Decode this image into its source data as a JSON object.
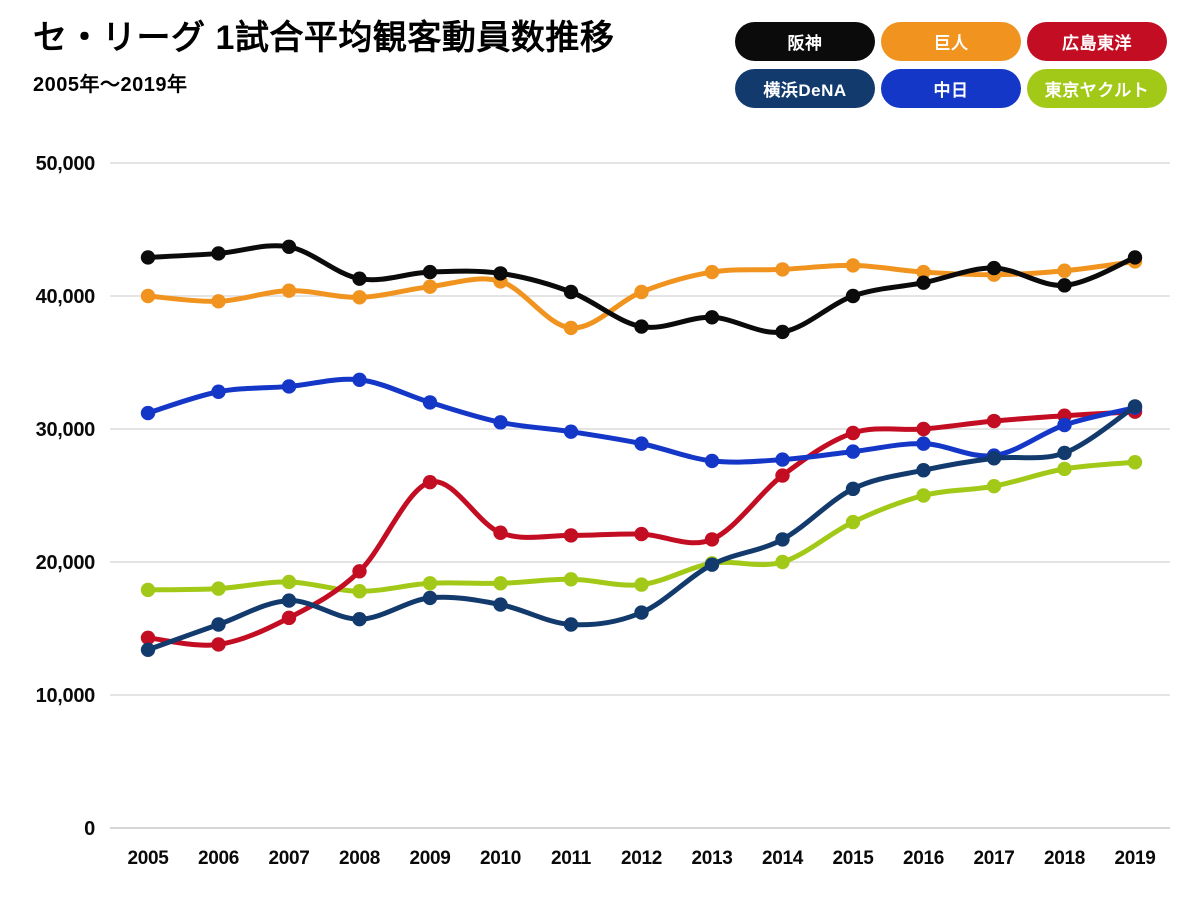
{
  "header": {
    "title": "セ・リーグ 1試合平均観客動員数推移",
    "subtitle": "2005年〜2019年"
  },
  "legend": {
    "position": "top-right",
    "items": [
      {
        "id": "hanshin",
        "label": "阪神",
        "color": "#0B0B0B"
      },
      {
        "id": "kyojin",
        "label": "巨人",
        "color": "#F0941F"
      },
      {
        "id": "hiroshima",
        "label": "広島東洋",
        "color": "#C30D23"
      },
      {
        "id": "dena",
        "label": "横浜DeNA",
        "color": "#123A6D"
      },
      {
        "id": "chunichi",
        "label": "中日",
        "color": "#1437C8"
      },
      {
        "id": "yakult",
        "label": "東京ヤクルト",
        "color": "#A3C918"
      }
    ]
  },
  "chart_data": {
    "type": "line",
    "title": "セ・リーグ 1試合平均観客動員数推移",
    "subtitle": "2005年〜2019年",
    "xlabel": "",
    "ylabel": "",
    "ylim": [
      0,
      50000
    ],
    "grid": true,
    "legend_position": "top-right",
    "categories": [
      "2005",
      "2006",
      "2007",
      "2008",
      "2009",
      "2010",
      "2011",
      "2012",
      "2013",
      "2014",
      "2015",
      "2016",
      "2017",
      "2018",
      "2019"
    ],
    "yticks": [
      {
        "v": 50000,
        "label": "50,000"
      },
      {
        "v": 40000,
        "label": "40,000"
      },
      {
        "v": 30000,
        "label": "30,000"
      },
      {
        "v": 20000,
        "label": "20,000"
      },
      {
        "v": 10000,
        "label": "10,000"
      },
      {
        "v": 0,
        "label": "0"
      }
    ],
    "series": [
      {
        "name": "阪神",
        "color": "#0B0B0B",
        "values": [
          42900,
          43200,
          43700,
          41300,
          41800,
          41700,
          40300,
          37700,
          38400,
          37300,
          40000,
          41000,
          42100,
          40800,
          42900
        ]
      },
      {
        "name": "巨人",
        "color": "#F0941F",
        "values": [
          40000,
          39600,
          40400,
          39900,
          40700,
          41100,
          37600,
          40300,
          41800,
          42000,
          42300,
          41800,
          41600,
          41900,
          42600
        ]
      },
      {
        "name": "広島東洋",
        "color": "#C30D23",
        "values": [
          14300,
          13800,
          15800,
          19300,
          26000,
          22200,
          22000,
          22100,
          21700,
          26500,
          29700,
          30000,
          30600,
          31000,
          31300
        ]
      },
      {
        "name": "横浜DeNA",
        "color": "#123A6D",
        "values": [
          13400,
          15300,
          17100,
          15700,
          17300,
          16800,
          15300,
          16200,
          19800,
          21700,
          25500,
          26900,
          27800,
          28200,
          31700
        ]
      },
      {
        "name": "中日",
        "color": "#1437C8",
        "values": [
          31200,
          32800,
          33200,
          33700,
          32000,
          30500,
          29800,
          28900,
          27600,
          27700,
          28300,
          28900,
          28000,
          30300,
          31600
        ]
      },
      {
        "name": "東京ヤクルト",
        "color": "#A3C918",
        "values": [
          17900,
          18000,
          18500,
          17800,
          18400,
          18400,
          18700,
          18300,
          19900,
          20000,
          23000,
          25000,
          25700,
          27000,
          27500
        ]
      }
    ],
    "draw_order": [
      5,
      2,
      4,
      3,
      1,
      0
    ]
  }
}
